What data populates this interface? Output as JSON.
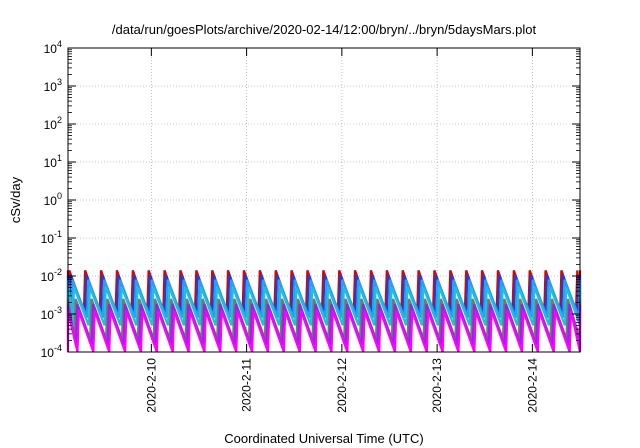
{
  "chart_data": {
    "type": "line",
    "title": "/data/run/goesPlots/archive/2020-02-14/12:00/bryn/../bryn/5daysMars.plot",
    "xlabel": "Coordinated Universal Time (UTC)",
    "ylabel": "cSv/day",
    "yscale": "log",
    "ylim": [
      0.0001,
      10000
    ],
    "xlim": [
      "2020-02-09T03:00",
      "2020-02-14T12:00"
    ],
    "x_ticks": [
      "2020-2-10",
      "2020-2-11",
      "2020-2-12",
      "2020-2-13",
      "2020-2-14"
    ],
    "y_ticks": [
      {
        "base": "10",
        "exp": "-4"
      },
      {
        "base": "10",
        "exp": "-3"
      },
      {
        "base": "10",
        "exp": "-2"
      },
      {
        "base": "10",
        "exp": "-1"
      },
      {
        "base": "10",
        "exp": "0"
      },
      {
        "base": "10",
        "exp": "1"
      },
      {
        "base": "10",
        "exp": "2"
      },
      {
        "base": "10",
        "exp": "3"
      },
      {
        "base": "10",
        "exp": "4"
      }
    ],
    "grid": true,
    "legend": "none",
    "pattern": {
      "description": "periodic sawtooth dose rate",
      "period_hours": 4,
      "start": "2020-02-09T03:00",
      "end": "2020-02-14T12:00"
    },
    "series": [
      {
        "color": "#e00000",
        "peak": 0.014,
        "trough": 0.0012,
        "phase_hours": 0.0
      },
      {
        "color": "#1f3fd0",
        "peak": 0.011,
        "trough": 0.0009,
        "phase_hours": 0.3
      },
      {
        "color": "#2a9df4",
        "peak": 0.008,
        "trough": 0.0008,
        "phase_hours": 0.8
      },
      {
        "color": "#20c0d8",
        "peak": 0.005,
        "trough": 0.0005,
        "phase_hours": 1.2
      },
      {
        "color": "#777777",
        "peak": 0.0025,
        "trough": 0.00022,
        "phase_hours": 1.6
      },
      {
        "color": "#8a2be2",
        "peak": 0.0018,
        "trough": 0.00015,
        "phase_hours": 2.0
      },
      {
        "color": "#ff00ff",
        "peak": 0.0012,
        "trough": 0.0001,
        "phase_hours": 2.4
      }
    ]
  }
}
